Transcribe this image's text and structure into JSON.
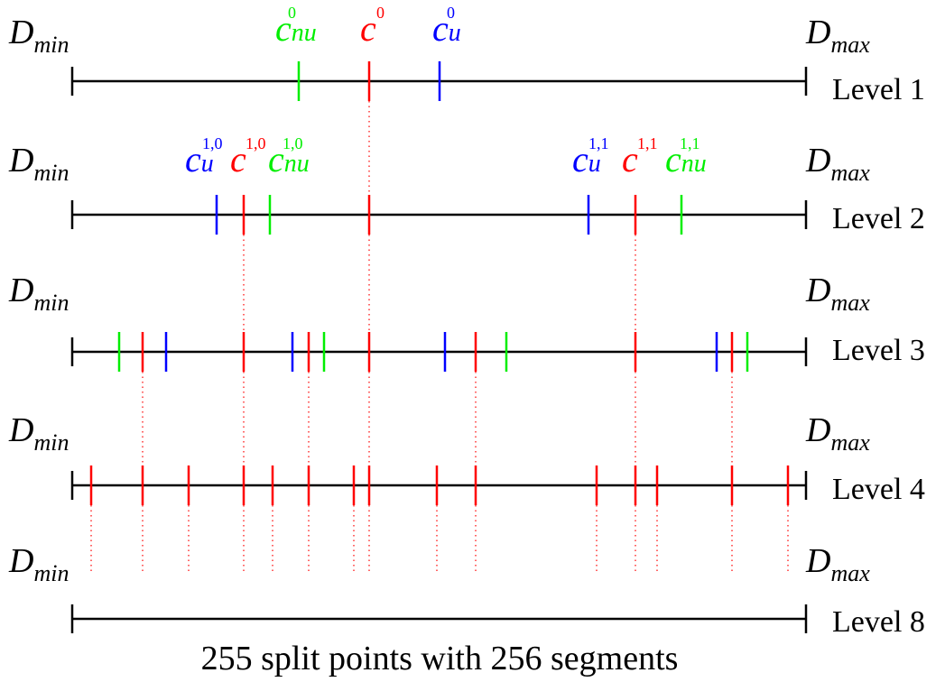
{
  "colors": {
    "axis": "#000000",
    "red": "#ff0000",
    "green": "#00ee00",
    "blue": "#0000ff"
  },
  "endpoints": {
    "min": {
      "base": "D",
      "sub": "min"
    },
    "max": {
      "base": "D",
      "sub": "max"
    }
  },
  "levels": [
    {
      "label": "Level 1"
    },
    {
      "label": "Level 2"
    },
    {
      "label": "Level 3"
    },
    {
      "label": "Level 4"
    },
    {
      "label": "Level 8"
    }
  ],
  "centroids": {
    "l1": [
      {
        "base": "c",
        "sub": "nu",
        "sup": "0",
        "color": "green"
      },
      {
        "base": "c",
        "sub": "",
        "sup": "0",
        "color": "red"
      },
      {
        "base": "c",
        "sub": "u",
        "sup": "0",
        "color": "blue"
      }
    ],
    "l2": [
      {
        "base": "c",
        "sub": "u",
        "sup": "1,0",
        "color": "blue"
      },
      {
        "base": "c",
        "sub": "",
        "sup": "1,0",
        "color": "red"
      },
      {
        "base": "c",
        "sub": "nu",
        "sup": "1,0",
        "color": "green"
      },
      {
        "base": "c",
        "sub": "u",
        "sup": "1,1",
        "color": "blue"
      },
      {
        "base": "c",
        "sub": "",
        "sup": "1,1",
        "color": "red"
      },
      {
        "base": "c",
        "sub": "nu",
        "sup": "1,1",
        "color": "green"
      }
    ]
  },
  "caption": "255 split points with 256 segments"
}
